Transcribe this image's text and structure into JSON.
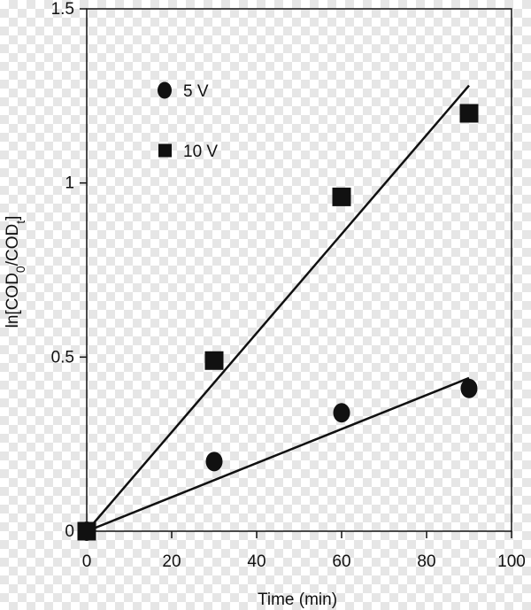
{
  "chart_data": {
    "type": "scatter",
    "xlabel": "Time (min)",
    "ylabel": {
      "prefix": "ln[COD",
      "sub1": "0",
      "middle": "/COD",
      "sub2": "t",
      "suffix": "]"
    },
    "xlim": [
      0,
      100
    ],
    "ylim": [
      0,
      1.5
    ],
    "xticks": [
      0,
      20,
      40,
      60,
      80,
      100
    ],
    "yticks": [
      0,
      0.5,
      1,
      1.5
    ],
    "grid": false,
    "legend_position": "top-left",
    "series": [
      {
        "name": "5 V",
        "marker": "circle",
        "x": [
          0,
          30,
          60,
          90
        ],
        "y": [
          0,
          0.2,
          0.34,
          0.41
        ],
        "fit": {
          "x": [
            0,
            90
          ],
          "y": [
            0,
            0.44
          ]
        }
      },
      {
        "name": "10 V",
        "marker": "square",
        "x": [
          0,
          30,
          60,
          90
        ],
        "y": [
          0,
          0.49,
          0.96,
          1.2
        ],
        "fit": {
          "x": [
            0,
            90
          ],
          "y": [
            0,
            1.28
          ]
        }
      }
    ],
    "colors": {
      "marks": "#111111",
      "axis": "#111111"
    }
  }
}
